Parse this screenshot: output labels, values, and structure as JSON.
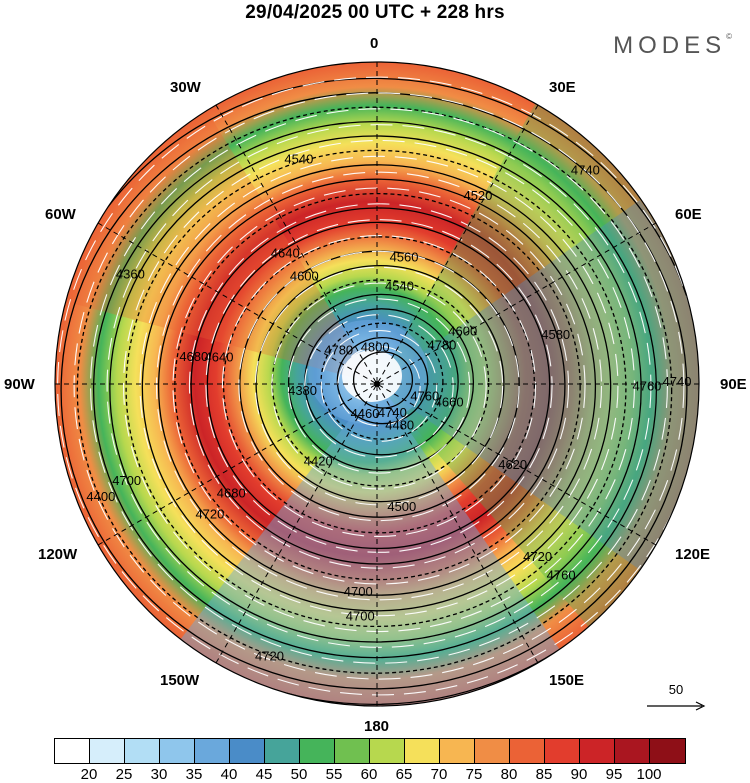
{
  "title": "29/04/2025  00 UTC  + 228 hrs",
  "brand": "MODES",
  "brand_mark": "©",
  "longitude_labels": {
    "lon0": "0",
    "lon30e": "30E",
    "lon60e": "60E",
    "lon90e": "90E",
    "lon120e": "120E",
    "lon150e": "150E",
    "lon180": "180",
    "lon150w": "150W",
    "lon120w": "120W",
    "lon90w": "90W",
    "lon60w": "60W",
    "lon30w": "30W"
  },
  "vector_reference": "50",
  "colorbar": {
    "colors": [
      "#ffffff",
      "#d6eefb",
      "#b2def5",
      "#8fc6ec",
      "#6aa8dc",
      "#4a8cc8",
      "#46a49a",
      "#45b45a",
      "#70c050",
      "#b7d84e",
      "#f5e05a",
      "#f7b651",
      "#f08d45",
      "#eb6236",
      "#e23d2d",
      "#cc2427",
      "#aa1620",
      "#8e0f17"
    ],
    "labels": [
      "20",
      "25",
      "30",
      "35",
      "40",
      "45",
      "50",
      "55",
      "60",
      "65",
      "70",
      "75",
      "80",
      "85",
      "90",
      "95",
      "100"
    ]
  },
  "contour_labels": [
    {
      "text": "4740"
    },
    {
      "text": "4760"
    },
    {
      "text": "4700"
    },
    {
      "text": "4720"
    },
    {
      "text": "4680"
    },
    {
      "text": "4640"
    },
    {
      "text": "4560"
    },
    {
      "text": "4600"
    },
    {
      "text": "4660"
    },
    {
      "text": "4480"
    },
    {
      "text": "4460"
    },
    {
      "text": "4400"
    },
    {
      "text": "4360"
    },
    {
      "text": "4540"
    },
    {
      "text": "4520"
    },
    {
      "text": "4580"
    },
    {
      "text": "4620"
    },
    {
      "text": "4500"
    },
    {
      "text": "4420"
    },
    {
      "text": "4380"
    },
    {
      "text": "4780"
    },
    {
      "text": "4800"
    },
    {
      "text": "4740"
    },
    {
      "text": "4760"
    },
    {
      "text": "4720"
    },
    {
      "text": "4700"
    },
    {
      "text": "4680"
    },
    {
      "text": "4640"
    },
    {
      "text": "4600"
    },
    {
      "text": "4540"
    },
    {
      "text": "4780"
    },
    {
      "text": "4760"
    },
    {
      "text": "4740"
    },
    {
      "text": "4720"
    },
    {
      "text": "4700"
    }
  ]
}
